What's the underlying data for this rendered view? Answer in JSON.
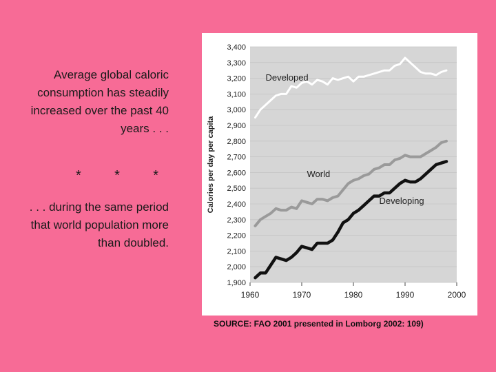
{
  "text": {
    "intro": "Average global caloric consumption has steadily increased over the past 40 years . . .",
    "stars": [
      "*",
      "*",
      "*"
    ],
    "outro": ". . . during the same period that world population more than doubled.",
    "source": "SOURCE: FAO 2001 presented in Lomborg 2002: 109)"
  },
  "colors": {
    "background": "#f76b96",
    "developed_line": "#ffffff",
    "world_line": "#9a9a9a",
    "developing_line": "#111111",
    "plot_background": "#d6d6d6"
  },
  "chart_data": {
    "type": "line",
    "title": "",
    "xlabel": "",
    "ylabel": "Calories per day per capita",
    "xlim": [
      1960,
      2000
    ],
    "ylim": [
      1900,
      3400
    ],
    "xticks": [
      "1960",
      "1970",
      "1980",
      "1990",
      "2000"
    ],
    "yticks": [
      "1,900",
      "2,000",
      "2,100",
      "2,200",
      "2,300",
      "2,400",
      "2,500",
      "2,600",
      "2,700",
      "2,800",
      "2,900",
      "3,000",
      "3,100",
      "3,200",
      "3,300",
      "3,400"
    ],
    "grid": true,
    "series": [
      {
        "name": "Developed",
        "x": [
          1961,
          1962,
          1963,
          1964,
          1965,
          1966,
          1967,
          1968,
          1969,
          1970,
          1971,
          1972,
          1973,
          1974,
          1975,
          1976,
          1977,
          1978,
          1979,
          1980,
          1981,
          1982,
          1983,
          1984,
          1985,
          1986,
          1987,
          1988,
          1989,
          1990,
          1991,
          1992,
          1993,
          1994,
          1995,
          1996,
          1997,
          1998
        ],
        "values": [
          2950,
          3000,
          3030,
          3060,
          3090,
          3100,
          3100,
          3150,
          3140,
          3170,
          3180,
          3160,
          3190,
          3180,
          3160,
          3200,
          3190,
          3200,
          3210,
          3180,
          3210,
          3210,
          3220,
          3230,
          3240,
          3250,
          3250,
          3280,
          3290,
          3330,
          3300,
          3270,
          3240,
          3230,
          3230,
          3220,
          3240,
          3250
        ]
      },
      {
        "name": "World",
        "x": [
          1961,
          1962,
          1963,
          1964,
          1965,
          1966,
          1967,
          1968,
          1969,
          1970,
          1971,
          1972,
          1973,
          1974,
          1975,
          1976,
          1977,
          1978,
          1979,
          1980,
          1981,
          1982,
          1983,
          1984,
          1985,
          1986,
          1987,
          1988,
          1989,
          1990,
          1991,
          1992,
          1993,
          1994,
          1995,
          1996,
          1997,
          1998
        ],
        "values": [
          2260,
          2300,
          2320,
          2340,
          2370,
          2360,
          2360,
          2380,
          2370,
          2420,
          2410,
          2400,
          2430,
          2430,
          2420,
          2440,
          2450,
          2490,
          2530,
          2550,
          2560,
          2580,
          2590,
          2620,
          2630,
          2650,
          2650,
          2680,
          2690,
          2710,
          2700,
          2700,
          2700,
          2720,
          2740,
          2760,
          2790,
          2800
        ]
      },
      {
        "name": "Developing",
        "x": [
          1961,
          1962,
          1963,
          1964,
          1965,
          1966,
          1967,
          1968,
          1969,
          1970,
          1971,
          1972,
          1973,
          1974,
          1975,
          1976,
          1977,
          1978,
          1979,
          1980,
          1981,
          1982,
          1983,
          1984,
          1985,
          1986,
          1987,
          1988,
          1989,
          1990,
          1991,
          1992,
          1993,
          1994,
          1995,
          1996,
          1997,
          1998
        ],
        "values": [
          1930,
          1960,
          1960,
          2010,
          2060,
          2050,
          2040,
          2060,
          2090,
          2130,
          2120,
          2110,
          2150,
          2150,
          2150,
          2170,
          2220,
          2280,
          2300,
          2340,
          2360,
          2390,
          2420,
          2450,
          2450,
          2470,
          2470,
          2500,
          2530,
          2550,
          2540,
          2540,
          2560,
          2590,
          2620,
          2650,
          2660,
          2670
        ]
      }
    ],
    "annotations": [
      {
        "text": "Developed",
        "x": 1963,
        "y": 3185
      },
      {
        "text": "World",
        "x": 1971,
        "y": 2570
      },
      {
        "text": "Developing",
        "x": 1985,
        "y": 2400
      }
    ]
  }
}
